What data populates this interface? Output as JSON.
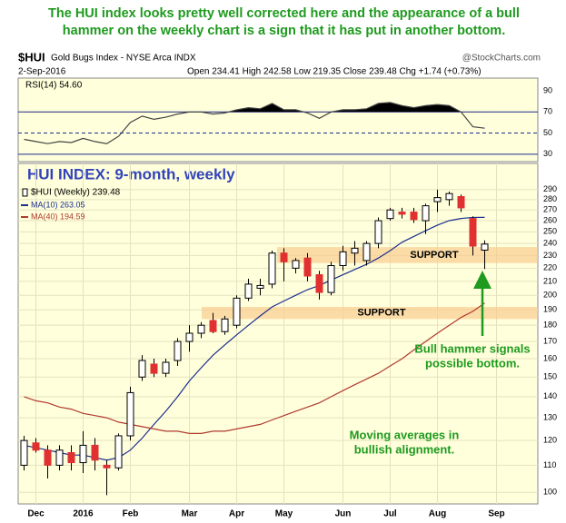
{
  "commentary": "The HUI index looks pretty well corrected here and the appearance of a bull hammer on the weekly chart is a sign that it has put in another bottom.",
  "header": {
    "symbol": "$HUI",
    "subtitle": "Gold Bugs Index - NYSE Arca INDX",
    "source": "@StockCharts.com",
    "date": "2-Sep-2016",
    "info": "Open 234.41 High 242.58 Low 219.35 Close 239.48 Chg +1.74 (+0.73%)"
  },
  "chart_data": [
    {
      "type": "line",
      "label": "RSI(14) 54.60",
      "color": "#444444",
      "values": [
        44,
        42,
        40,
        42,
        41,
        45,
        42,
        40,
        47,
        60,
        66,
        63,
        65,
        68,
        70,
        70,
        68,
        69,
        72,
        74,
        73,
        78,
        72,
        72,
        69,
        64,
        70,
        72,
        72,
        73,
        78,
        79,
        76,
        74,
        76,
        77,
        76,
        70,
        56,
        54.6,
        null,
        null,
        null,
        null
      ],
      "ylim": [
        23,
        102
      ],
      "yticks": [
        90,
        70,
        50,
        30
      ],
      "reference_lines": [
        {
          "value": 70,
          "style": "solid"
        },
        {
          "value": 50,
          "style": "dashed"
        },
        {
          "value": 30,
          "style": "solid"
        }
      ]
    },
    {
      "type": "candlestick",
      "title": "HUI INDEX: 9-month, weekly",
      "log_scale": true,
      "grid": true,
      "categories": [
        null,
        "Dec",
        null,
        null,
        null,
        "2016",
        null,
        null,
        null,
        "Feb",
        null,
        null,
        null,
        null,
        "Mar",
        null,
        null,
        null,
        "Apr",
        null,
        null,
        null,
        "May",
        null,
        null,
        null,
        null,
        "Jun",
        null,
        null,
        null,
        "Jul",
        null,
        null,
        null,
        "Aug",
        null,
        null,
        null,
        null,
        "Sep",
        null,
        null,
        null
      ],
      "candles": {
        "name": "$HUI (Weekly) 239.48",
        "up_color": "#ffffff",
        "down_color": "#e03030",
        "open": [
          110,
          119,
          116,
          110,
          115,
          111,
          118,
          110,
          109,
          122,
          150,
          157,
          152,
          159,
          170,
          175,
          183,
          176,
          180,
          198,
          205,
          208,
          232,
          220,
          228,
          215,
          202,
          222,
          232,
          226,
          240,
          262,
          268,
          268,
          260,
          278,
          280,
          283,
          262,
          234.41,
          null,
          null,
          null,
          null
        ],
        "high": [
          122,
          121,
          118,
          118,
          118,
          124,
          121,
          112,
          123,
          145,
          162,
          160,
          160,
          172,
          180,
          182,
          188,
          186,
          200,
          212,
          212,
          234,
          236,
          228,
          232,
          218,
          225,
          238,
          242,
          242,
          263,
          272,
          272,
          272,
          276,
          290,
          288,
          285,
          264,
          242.58,
          null,
          null,
          null,
          null
        ],
        "low": [
          108,
          115,
          105,
          108,
          108,
          107,
          108,
          99,
          108,
          120,
          148,
          150,
          150,
          156,
          164,
          172,
          175,
          174,
          178,
          196,
          200,
          205,
          210,
          216,
          210,
          197,
          200,
          218,
          222,
          222,
          236,
          260,
          262,
          258,
          248,
          268,
          274,
          268,
          230,
          219.35,
          null,
          null,
          null,
          null
        ],
        "close": [
          120,
          116,
          110,
          116,
          111,
          118,
          112,
          109,
          122,
          142,
          159,
          152,
          158,
          170,
          175,
          180,
          176,
          184,
          198,
          208,
          207,
          232,
          225,
          226,
          214,
          202,
          222,
          233,
          236,
          240,
          260,
          270,
          266,
          261,
          274,
          282,
          286,
          272,
          237.74,
          239.48,
          null,
          null,
          null,
          null
        ]
      },
      "series": [
        {
          "name": "MA(10) 263.05",
          "color": "#1c2f8c",
          "values": [
            118,
            117,
            116,
            115,
            114,
            114,
            113,
            112,
            113,
            116,
            121,
            127,
            133,
            140,
            148,
            155,
            162,
            168,
            174,
            180,
            186,
            192,
            196,
            200,
            204,
            207,
            211,
            215,
            219,
            223,
            228,
            234,
            241,
            246,
            251,
            256,
            260,
            262,
            263,
            263.05,
            null,
            null,
            null,
            null
          ]
        },
        {
          "name": "MA(40) 194.59",
          "color": "#b03a2e",
          "values": [
            140,
            138,
            137,
            135,
            134,
            132,
            131,
            130,
            128,
            127,
            126,
            125,
            124,
            124,
            123,
            123,
            124,
            124,
            125,
            126,
            127,
            129,
            131,
            133,
            135,
            137,
            140,
            143,
            146,
            149,
            152,
            156,
            160,
            165,
            170,
            175,
            180,
            185,
            189,
            194.59,
            null,
            null,
            null,
            null
          ]
        }
      ],
      "ylim": [
        96,
        318
      ],
      "yticks": [
        100,
        110,
        120,
        130,
        140,
        150,
        160,
        170,
        180,
        190,
        200,
        210,
        220,
        230,
        240,
        250,
        260,
        270,
        280,
        290
      ],
      "bands": [
        {
          "label": "SUPPORT",
          "low": 224,
          "high": 237
        },
        {
          "label": "SUPPORT",
          "low": 184,
          "high": 192
        }
      ],
      "annotations": [
        {
          "text": [
            "Bull hammer signals",
            "possible bottom."
          ]
        },
        {
          "text": [
            "Moving averages in",
            "bullish alignment."
          ]
        }
      ]
    }
  ]
}
